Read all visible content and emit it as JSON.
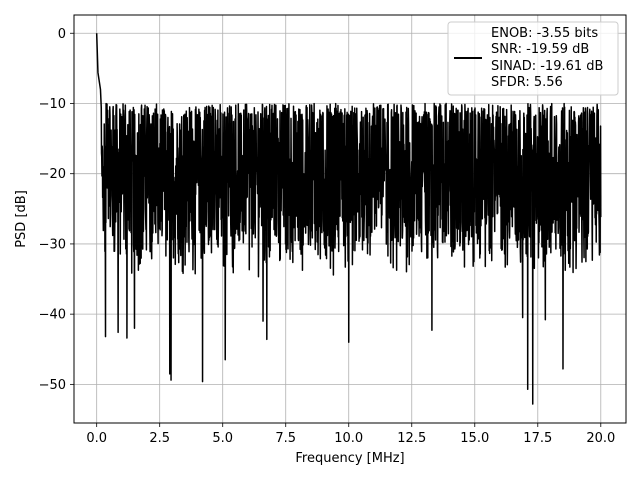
{
  "chart_data": {
    "type": "line",
    "xlabel": "Frequency [MHz]",
    "ylabel": "PSD [dB]",
    "xlim": [
      -0.9,
      21.0
    ],
    "ylim": [
      -55.5,
      2.6
    ],
    "xticks": [
      0.0,
      2.5,
      5.0,
      7.5,
      10.0,
      12.5,
      15.0,
      17.5,
      20.0
    ],
    "xtick_labels": [
      "0.0",
      "2.5",
      "5.0",
      "7.5",
      "10.0",
      "12.5",
      "15.0",
      "17.5",
      "20.0"
    ],
    "yticks": [
      0,
      -10,
      -20,
      -30,
      -40,
      -50
    ],
    "ytick_labels": [
      "0",
      "−10",
      "−20",
      "−30",
      "−40",
      "−50"
    ],
    "grid": true,
    "legend_position": "top-right",
    "series": [
      {
        "name": "ENOB: -3.55 bits\nSNR: -19.59 dB\nSINAD: -19.61 dB\nSFDR: 5.56",
        "color": "#000000",
        "line_style": "solid",
        "x_range": [
          0.0,
          20.0
        ],
        "noise_floor_db": [
          -35,
          -10
        ],
        "peaks": [
          {
            "x": 0.0,
            "y": 0.0
          },
          {
            "x": 0.05,
            "y": -5.6
          },
          {
            "x": 0.15,
            "y": -8.0
          }
        ],
        "dips": [
          {
            "x": 0.35,
            "y": -43.2
          },
          {
            "x": 0.85,
            "y": -42.6
          },
          {
            "x": 1.2,
            "y": -43.4
          },
          {
            "x": 1.5,
            "y": -42.0
          },
          {
            "x": 2.9,
            "y": -48.5
          },
          {
            "x": 2.95,
            "y": -49.4
          },
          {
            "x": 4.2,
            "y": -49.6
          },
          {
            "x": 5.1,
            "y": -46.5
          },
          {
            "x": 6.6,
            "y": -41.0
          },
          {
            "x": 6.75,
            "y": -43.6
          },
          {
            "x": 10.0,
            "y": -44.0
          },
          {
            "x": 13.3,
            "y": -42.3
          },
          {
            "x": 16.9,
            "y": -40.5
          },
          {
            "x": 17.1,
            "y": -50.7
          },
          {
            "x": 17.3,
            "y": -52.8
          },
          {
            "x": 17.8,
            "y": -40.8
          },
          {
            "x": 18.5,
            "y": -47.8
          }
        ]
      }
    ],
    "legend": {
      "lines": [
        "ENOB: -3.55 bits",
        "SNR: -19.59 dB",
        "SINAD: -19.61 dB",
        "SFDR: 5.56"
      ]
    }
  }
}
